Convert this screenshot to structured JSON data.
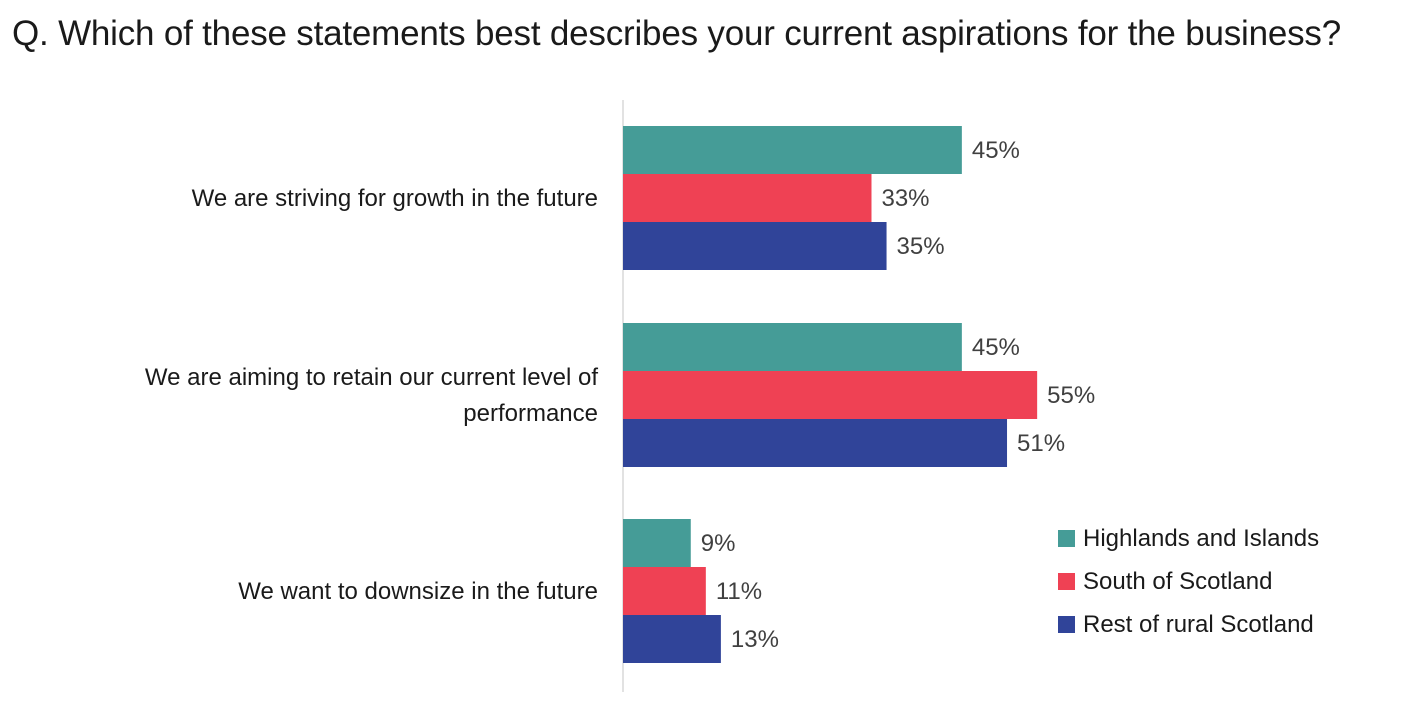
{
  "chart_data": {
    "type": "bar",
    "orientation": "horizontal",
    "title": "Q. Which of these statements best describes your current aspirations for the business?",
    "categories": [
      [
        "We are striving for growth in the future"
      ],
      [
        "We are aiming to retain our current level of",
        "performance"
      ],
      [
        "We want to downsize in the future"
      ]
    ],
    "series": [
      {
        "name": "Highlands and Islands",
        "color": "#459c97",
        "values": [
          45,
          45,
          9
        ],
        "labels": [
          "45%",
          "45%",
          "9%"
        ]
      },
      {
        "name": "South of Scotland",
        "color": "#ef4154",
        "values": [
          33,
          55,
          11
        ],
        "labels": [
          "33%",
          "55%",
          "11%"
        ]
      },
      {
        "name": "Rest of rural Scotland",
        "color": "#304499",
        "values": [
          35,
          51,
          13
        ],
        "labels": [
          "35%",
          "51%",
          "13%"
        ]
      }
    ],
    "value_unit": "%",
    "xlim": [
      0,
      100
    ],
    "grid": false,
    "legend_position": "bottom-right"
  }
}
